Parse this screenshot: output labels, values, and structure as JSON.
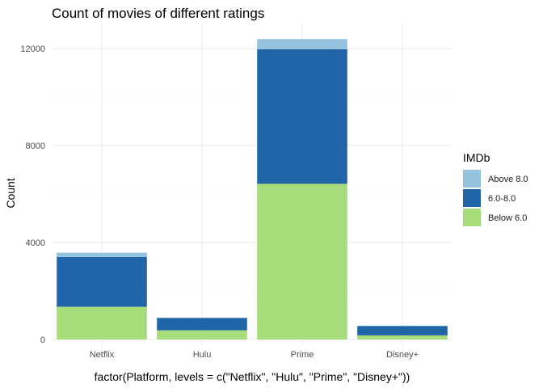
{
  "chart_data": {
    "type": "bar",
    "stacked": true,
    "title": "Count of movies of different ratings",
    "xlabel": "factor(Platform, levels = c(\"Netflix\", \"Hulu\", \"Prime\", \"Disney+\"))",
    "ylabel": "Count",
    "categories": [
      "Netflix",
      "Hulu",
      "Prime",
      "Disney+"
    ],
    "ylim": [
      0,
      12400
    ],
    "yticks": [
      0,
      4000,
      8000,
      12000
    ],
    "grid": true,
    "legend": {
      "title": "IMDb",
      "placement": "right"
    },
    "series": [
      {
        "name": "Below 6.0",
        "color": "#a6dc7a",
        "values": [
          1350,
          380,
          6420,
          170
        ]
      },
      {
        "name": "6.0-8.0",
        "color": "#1f65a8",
        "values": [
          2050,
          510,
          5550,
          380
        ]
      },
      {
        "name": "Above 8.0",
        "color": "#95c2de",
        "values": [
          180,
          10,
          420,
          20
        ]
      }
    ],
    "legend_order": [
      "Above 8.0",
      "6.0-8.0",
      "Below 6.0"
    ]
  }
}
